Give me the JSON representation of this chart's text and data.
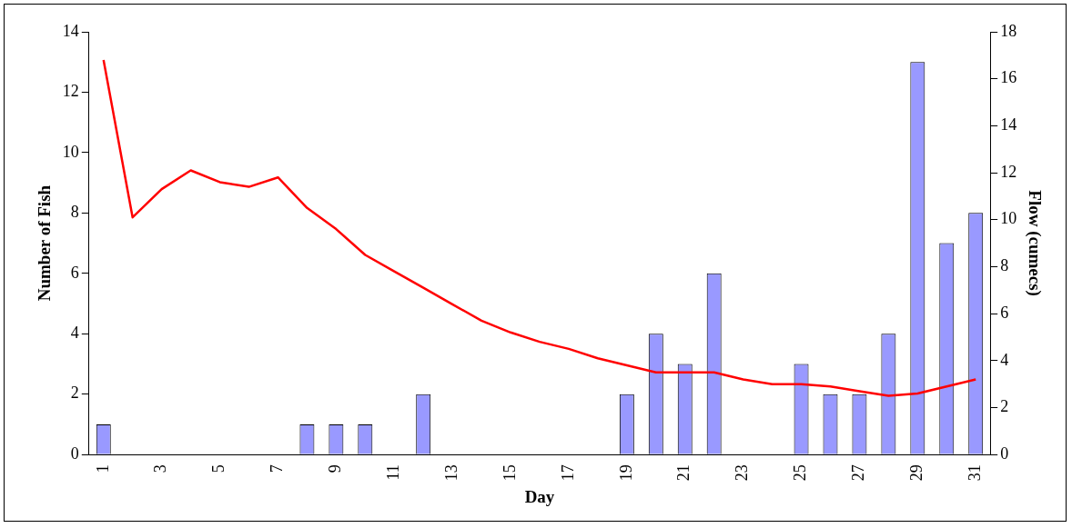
{
  "chart_data": {
    "type": "bar",
    "xlabel": "Day",
    "ylabel": "Number of Fish",
    "y2label": "Flow (cumecs)",
    "categories": [
      "1",
      null,
      "3",
      null,
      "5",
      null,
      "7",
      null,
      "9",
      null,
      "11",
      null,
      "13",
      null,
      "15",
      null,
      "17",
      null,
      "19",
      null,
      "21",
      null,
      "23",
      null,
      "25",
      null,
      "27",
      null,
      "29",
      null,
      "31"
    ],
    "series": [
      {
        "color": "#9999ff",
        "values": [
          1,
          0,
          0,
          0,
          0,
          0,
          0,
          1,
          1,
          1,
          0,
          2,
          0,
          0,
          0,
          0,
          0,
          0,
          2,
          4,
          3,
          6,
          0,
          0,
          3,
          2,
          2,
          4,
          13,
          7,
          8
        ]
      },
      {
        "type": "line",
        "axis": "y2",
        "color": "#ff0000",
        "values": [
          16.8,
          10.1,
          11.3,
          12.1,
          11.6,
          11.4,
          11.8,
          10.5,
          9.6,
          8.5,
          7.8,
          7.1,
          6.4,
          5.7,
          5.2,
          4.8,
          4.5,
          4.1,
          3.8,
          3.5,
          3.5,
          3.5,
          3.2,
          3.0,
          3.0,
          2.9,
          2.7,
          2.5,
          2.6,
          2.9,
          3.2
        ]
      }
    ],
    "ylim": [
      0,
      14
    ],
    "yticks": [
      0,
      2,
      4,
      6,
      8,
      10,
      12,
      14
    ],
    "y2lim": [
      0,
      18
    ],
    "y2ticks": [
      0,
      2,
      4,
      6,
      8,
      10,
      12,
      14,
      16,
      18
    ],
    "grid": false,
    "legend": false,
    "marker": "none"
  }
}
